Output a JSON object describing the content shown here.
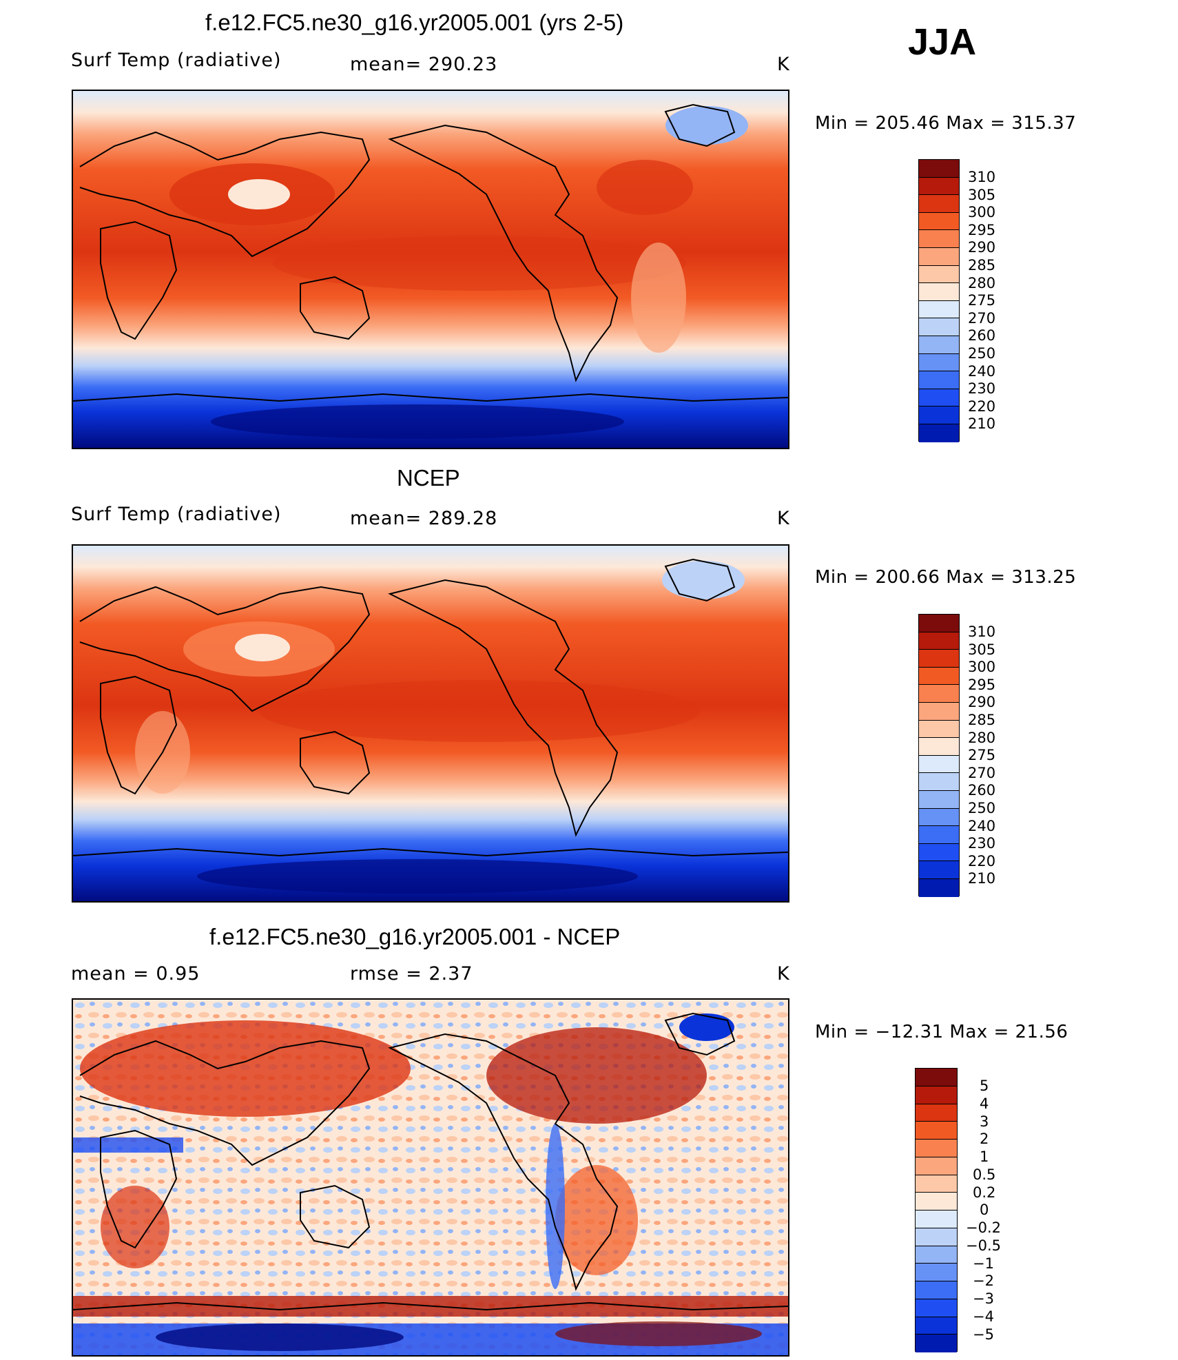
{
  "season": "JJA",
  "colors": {
    "temp_palette": [
      "#000a80",
      "#001bb0",
      "#0a33d9",
      "#1f4ff2",
      "#3b6df5",
      "#6691f5",
      "#93b4f5",
      "#bcd2f7",
      "#dceafb",
      "#fde8d8",
      "#fcc8a8",
      "#fba67d",
      "#f9814f",
      "#f25a24",
      "#dc3512",
      "#b51a0a",
      "#7c0b0b"
    ],
    "diff_palette": [
      "#000a80",
      "#001bb0",
      "#0a33d9",
      "#1f4ff2",
      "#3b6df5",
      "#6691f5",
      "#93b4f5",
      "#bcd2f7",
      "#dceafb",
      "#fde8d8",
      "#fcc8a8",
      "#fba67d",
      "#f9814f",
      "#f25a24",
      "#dc3512",
      "#b51a0a",
      "#7c0b0b"
    ],
    "frame": "#000000"
  },
  "panels": [
    {
      "title": "f.e12.FC5.ne30_g16.yr2005.001 (yrs 2-5)",
      "left_label": "Surf Temp (radiative)",
      "center_label": "mean=  290.23",
      "units": "K",
      "min_max": "Min  =  205.46  Max  =  315.37",
      "mean": 290.23,
      "min": 205.46,
      "max": 315.37,
      "levels": [
        "310",
        "305",
        "300",
        "295",
        "290",
        "285",
        "280",
        "275",
        "270",
        "260",
        "250",
        "240",
        "230",
        "220",
        "210"
      ]
    },
    {
      "title": "NCEP",
      "left_label": "Surf Temp (radiative)",
      "center_label": "mean=  289.28",
      "units": "K",
      "min_max": "Min  =  200.66  Max  =  313.25",
      "mean": 289.28,
      "min": 200.66,
      "max": 313.25,
      "levels": [
        "310",
        "305",
        "300",
        "295",
        "290",
        "285",
        "280",
        "275",
        "270",
        "260",
        "250",
        "240",
        "230",
        "220",
        "210"
      ]
    },
    {
      "title": "f.e12.FC5.ne30_g16.yr2005.001 - NCEP",
      "left_label": "mean  =      0.95",
      "center_label": "rmse  =      2.37",
      "units": "K",
      "min_max": "Min  =  −12.31  Max  =     21.56",
      "mean": 0.95,
      "rmse": 2.37,
      "min": -12.31,
      "max": 21.56,
      "levels": [
        "5",
        "4",
        "3",
        "2",
        "1",
        "0.5",
        "0.2",
        "0",
        "−0.2",
        "−0.5",
        "−1",
        "−2",
        "−3",
        "−4",
        "−5"
      ]
    }
  ]
}
